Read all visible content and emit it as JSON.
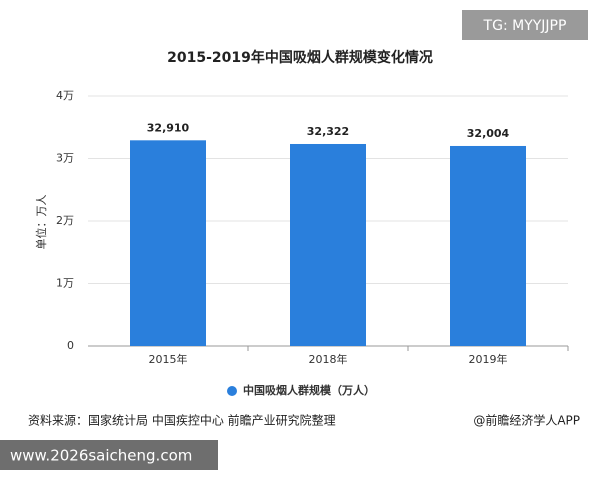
{
  "tag": "TG: MYYJJPP",
  "source": "资料来源：国家统计局 中国疾控中心 前瞻产业研究院整理",
  "credit": "@前瞻经济学人APP",
  "website": "www.2026saicheng.com",
  "chart_data": {
    "type": "bar",
    "title": "2015-2019年中国吸烟人群规模变化情况",
    "y_label": "单位：万人",
    "categories": [
      "2015年",
      "2018年",
      "2019年"
    ],
    "series": [
      {
        "name": "中国吸烟人群规模（万人）",
        "color": "#2a7fdc",
        "values": [
          32910,
          32322,
          32004
        ],
        "value_labels": [
          "32,910",
          "32,322",
          "32,004"
        ]
      }
    ],
    "ylim": [
      0,
      40000
    ],
    "yticks": [
      0,
      {
        "value": 10000,
        "label": "1万"
      },
      {
        "value": 20000,
        "label": "2万"
      },
      {
        "value": 30000,
        "label": "3万"
      },
      {
        "value": 40000,
        "label": "4万"
      }
    ],
    "grid": true,
    "legend": "bottom"
  }
}
